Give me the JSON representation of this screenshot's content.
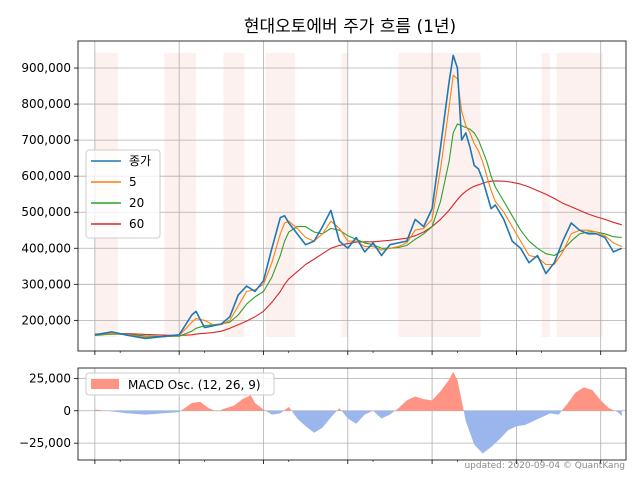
{
  "chart_data": [
    {
      "type": "line",
      "title": "현대오토에버 주가 흐름 (1년)",
      "xlabel": "",
      "ylabel": "",
      "ylim": [
        115000,
        975000
      ],
      "grid": true,
      "legend_position": "upper-left",
      "yticks": [
        200000,
        300000,
        400000,
        500000,
        600000,
        700000,
        800000,
        900000
      ],
      "ytick_labels": [
        "200,000",
        "300,000",
        "400,000",
        "500,000",
        "600,000",
        "700,000",
        "800,000",
        "900,000"
      ],
      "x_range": [
        -8,
        252
      ],
      "x": [
        0,
        8,
        16,
        24,
        32,
        40,
        46,
        48,
        52,
        56,
        60,
        64,
        68,
        72,
        76,
        80,
        84,
        88,
        90,
        92,
        96,
        100,
        104,
        108,
        112,
        116,
        120,
        124,
        128,
        132,
        136,
        140,
        144,
        148,
        152,
        156,
        160,
        164,
        168,
        170,
        172,
        174,
        176,
        178,
        180,
        182,
        184,
        186,
        188,
        190,
        194,
        198,
        202,
        206,
        210,
        214,
        218,
        222,
        226,
        230,
        234,
        238,
        242,
        246,
        250
      ],
      "shaded_spans": [
        [
          0,
          11
        ],
        [
          33,
          48
        ],
        [
          61,
          71
        ],
        [
          81,
          95
        ],
        [
          117,
          120
        ],
        [
          144,
          183
        ],
        [
          212,
          216
        ],
        [
          219,
          241
        ]
      ],
      "series": [
        {
          "name": "종가",
          "color": "#1f77b4",
          "values": [
            160000,
            168000,
            158000,
            150000,
            155000,
            160000,
            215000,
            225000,
            180000,
            185000,
            190000,
            210000,
            270000,
            295000,
            280000,
            310000,
            400000,
            485000,
            490000,
            470000,
            440000,
            410000,
            420000,
            460000,
            505000,
            420000,
            400000,
            430000,
            390000,
            415000,
            380000,
            410000,
            415000,
            420000,
            480000,
            460000,
            510000,
            680000,
            860000,
            935000,
            900000,
            700000,
            720000,
            680000,
            630000,
            620000,
            590000,
            550000,
            510000,
            520000,
            480000,
            420000,
            400000,
            360000,
            380000,
            330000,
            360000,
            420000,
            470000,
            450000,
            440000,
            440000,
            430000,
            390000,
            400000
          ]
        },
        {
          "name": "5",
          "color": "#ff7f0e",
          "values": [
            160000,
            164000,
            160000,
            153000,
            154000,
            158000,
            195000,
            205000,
            200000,
            188000,
            188000,
            200000,
            240000,
            280000,
            285000,
            300000,
            360000,
            440000,
            470000,
            475000,
            455000,
            430000,
            420000,
            440000,
            475000,
            455000,
            420000,
            420000,
            405000,
            405000,
            395000,
            400000,
            405000,
            415000,
            450000,
            455000,
            480000,
            620000,
            790000,
            880000,
            870000,
            780000,
            740000,
            720000,
            690000,
            670000,
            640000,
            600000,
            560000,
            530000,
            500000,
            460000,
            420000,
            380000,
            375000,
            355000,
            355000,
            390000,
            440000,
            450000,
            450000,
            445000,
            435000,
            415000,
            405000
          ]
        },
        {
          "name": "20",
          "color": "#2ca02c",
          "values": [
            158000,
            162000,
            161000,
            157000,
            155000,
            156000,
            170000,
            178000,
            185000,
            188000,
            190000,
            195000,
            215000,
            245000,
            265000,
            280000,
            320000,
            380000,
            420000,
            445000,
            460000,
            460000,
            445000,
            440000,
            455000,
            450000,
            435000,
            425000,
            415000,
            410000,
            400000,
            400000,
            402000,
            408000,
            425000,
            440000,
            460000,
            530000,
            640000,
            720000,
            745000,
            740000,
            735000,
            730000,
            720000,
            700000,
            670000,
            640000,
            600000,
            570000,
            530000,
            490000,
            450000,
            420000,
            400000,
            385000,
            380000,
            395000,
            420000,
            440000,
            445000,
            445000,
            440000,
            432000,
            430000
          ]
        },
        {
          "name": "60",
          "color": "#d62728",
          "values": [
            162000,
            163000,
            163000,
            161000,
            159000,
            158000,
            160000,
            162000,
            164000,
            166000,
            170000,
            178000,
            188000,
            198000,
            210000,
            225000,
            250000,
            280000,
            300000,
            315000,
            335000,
            355000,
            370000,
            385000,
            400000,
            408000,
            413000,
            417000,
            418000,
            418000,
            420000,
            422000,
            425000,
            428000,
            435000,
            445000,
            460000,
            480000,
            505000,
            520000,
            535000,
            548000,
            558000,
            566000,
            572000,
            576000,
            580000,
            584000,
            586000,
            587000,
            586000,
            583000,
            578000,
            570000,
            560000,
            550000,
            538000,
            525000,
            515000,
            505000,
            495000,
            487000,
            480000,
            472000,
            465000
          ]
        }
      ]
    },
    {
      "type": "area",
      "title": "",
      "xlabel": "",
      "ylabel": "",
      "ylim": [
        -38000,
        33000
      ],
      "yticks": [
        -25000,
        0,
        25000
      ],
      "ytick_labels": [
        "−25,000",
        "0",
        "25,000"
      ],
      "grid": true,
      "legend_position": "upper-left",
      "x": [
        0,
        8,
        16,
        24,
        32,
        40,
        46,
        50,
        54,
        58,
        62,
        66,
        70,
        74,
        76,
        80,
        84,
        88,
        92,
        96,
        100,
        104,
        108,
        112,
        116,
        120,
        124,
        128,
        132,
        136,
        140,
        144,
        148,
        152,
        156,
        160,
        164,
        168,
        170,
        172,
        176,
        180,
        184,
        188,
        192,
        196,
        200,
        204,
        208,
        212,
        216,
        220,
        224,
        228,
        232,
        236,
        240,
        244,
        248,
        250
      ],
      "series": [
        {
          "name": "MACD Osc. (12, 26, 9)",
          "positive_color": "#ff9485",
          "negative_color": "#9ab6ec",
          "values": [
            1000,
            -500,
            -2000,
            -3000,
            -2000,
            -1000,
            6000,
            7000,
            2000,
            -500,
            2000,
            4000,
            9000,
            12000,
            6000,
            1000,
            -3000,
            -2000,
            3000,
            -6000,
            -12000,
            -17000,
            -13000,
            -5000,
            2000,
            -6000,
            -10000,
            -3000,
            0,
            -6000,
            -3000,
            2000,
            8000,
            11000,
            9000,
            8000,
            15000,
            24000,
            30000,
            24000,
            -8000,
            -26000,
            -33000,
            -28000,
            -22000,
            -15000,
            -12000,
            -11000,
            -8000,
            -5000,
            -2000,
            -3000,
            5000,
            14000,
            18000,
            16000,
            8000,
            2000,
            -1000,
            -4000
          ]
        }
      ]
    }
  ],
  "footer": "updated: 2020-09-04 © QuantKang",
  "colors": {
    "shade": "#fce6e1",
    "grid": "#b0b0b0"
  }
}
